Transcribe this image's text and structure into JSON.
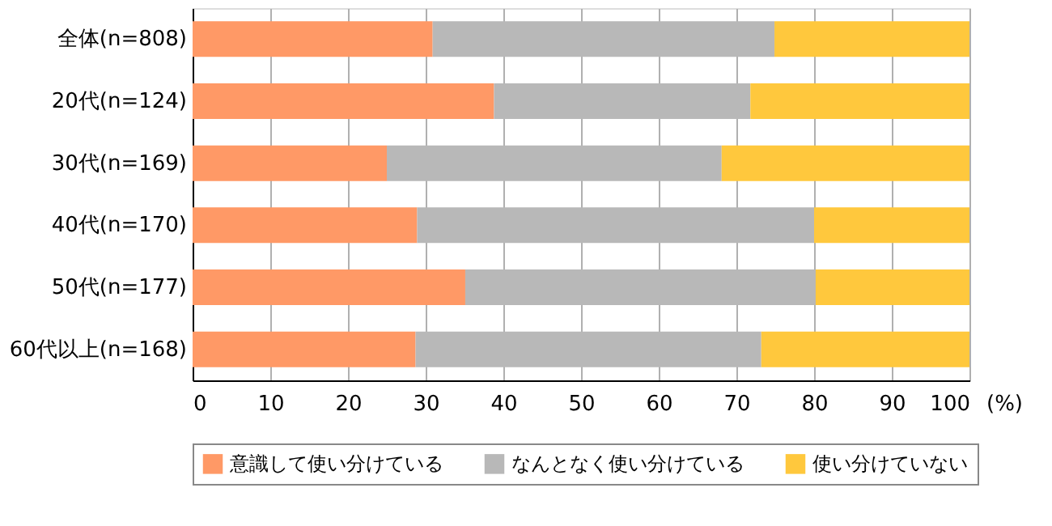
{
  "chart_data": {
    "type": "bar",
    "orientation": "horizontal",
    "stacked": true,
    "categories": [
      "全体(n=808)",
      "20代(n=124)",
      "30代(n=169)",
      "40代(n=170)",
      "50代(n=177)",
      "60代以上(n=168)"
    ],
    "series": [
      {
        "name": "意識して使い分けている",
        "color": "#ff9966",
        "values": [
          30.9,
          38.8,
          25.0,
          28.9,
          35.1,
          28.7
        ]
      },
      {
        "name": "なんとなく使い分けている",
        "color": "#b8b8b8",
        "values": [
          44.0,
          33.0,
          43.1,
          51.1,
          45.1,
          44.5
        ]
      },
      {
        "name": "使い分けていない",
        "color": "#ffc83d",
        "values": [
          25.1,
          28.2,
          31.9,
          20.0,
          19.8,
          26.8
        ]
      }
    ],
    "xlabel": "(%)",
    "xlim": [
      0,
      100
    ],
    "xticks": [
      0,
      10,
      20,
      30,
      40,
      50,
      60,
      70,
      80,
      90,
      100
    ],
    "grid": "x",
    "legend": "bottom"
  }
}
